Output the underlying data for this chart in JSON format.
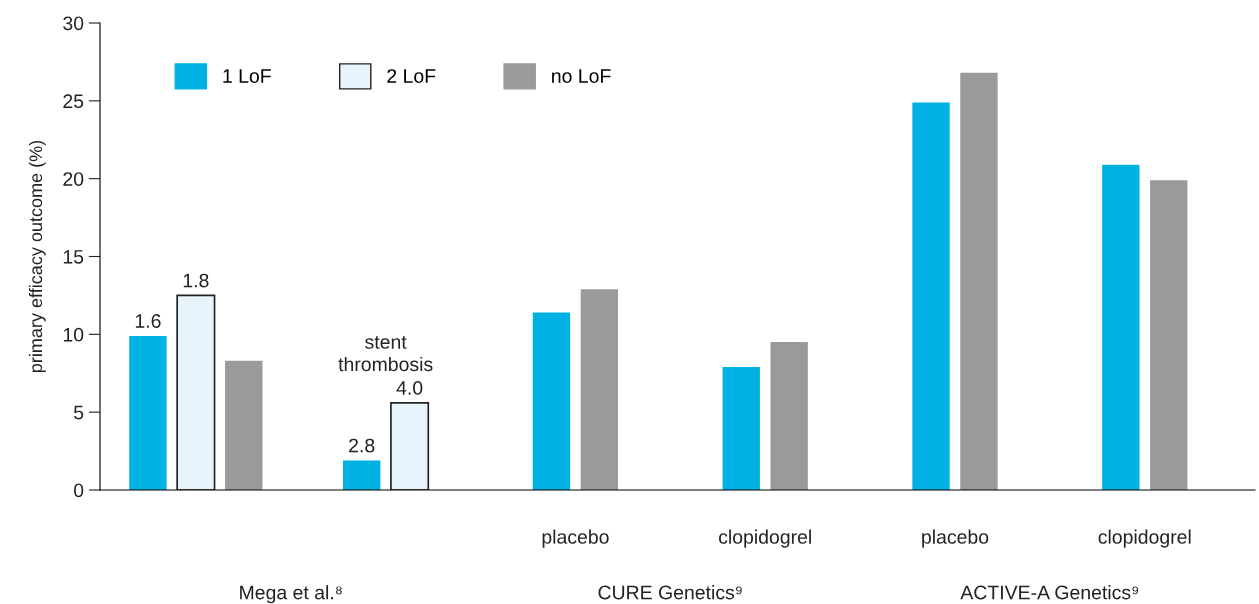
{
  "chart_data": {
    "type": "bar",
    "ylabel": "primary efficacy outcome (%)",
    "categories": [
      null,
      null,
      "placebo",
      "clopidogrel",
      "placebo",
      "clopidogrel"
    ],
    "series": [
      {
        "name": "1 LoF",
        "color": "#00b2e3",
        "values": [
          9.9,
          1.9,
          11.4,
          7.9,
          24.9,
          20.9
        ]
      },
      {
        "name": "2 LoF",
        "color": "#e8f4fb",
        "values": [
          12.5,
          5.6,
          null,
          null,
          null,
          null
        ]
      },
      {
        "name": "no LoF",
        "color": "#999a9c",
        "values": [
          8.3,
          null,
          12.9,
          9.5,
          26.8,
          19.9
        ]
      }
    ],
    "annotations": [
      "stent thrombosis",
      "Mega et al.⁸",
      "CURE Genetics⁹",
      "ACTIVE-A Genetics⁹",
      "1.6",
      "1.8",
      "2.8",
      "4.0"
    ],
    "ylim": [
      0,
      30
    ],
    "yticks": [
      0,
      5,
      10,
      15,
      20,
      25,
      30
    ],
    "grid": false,
    "legend": "top left"
  }
}
